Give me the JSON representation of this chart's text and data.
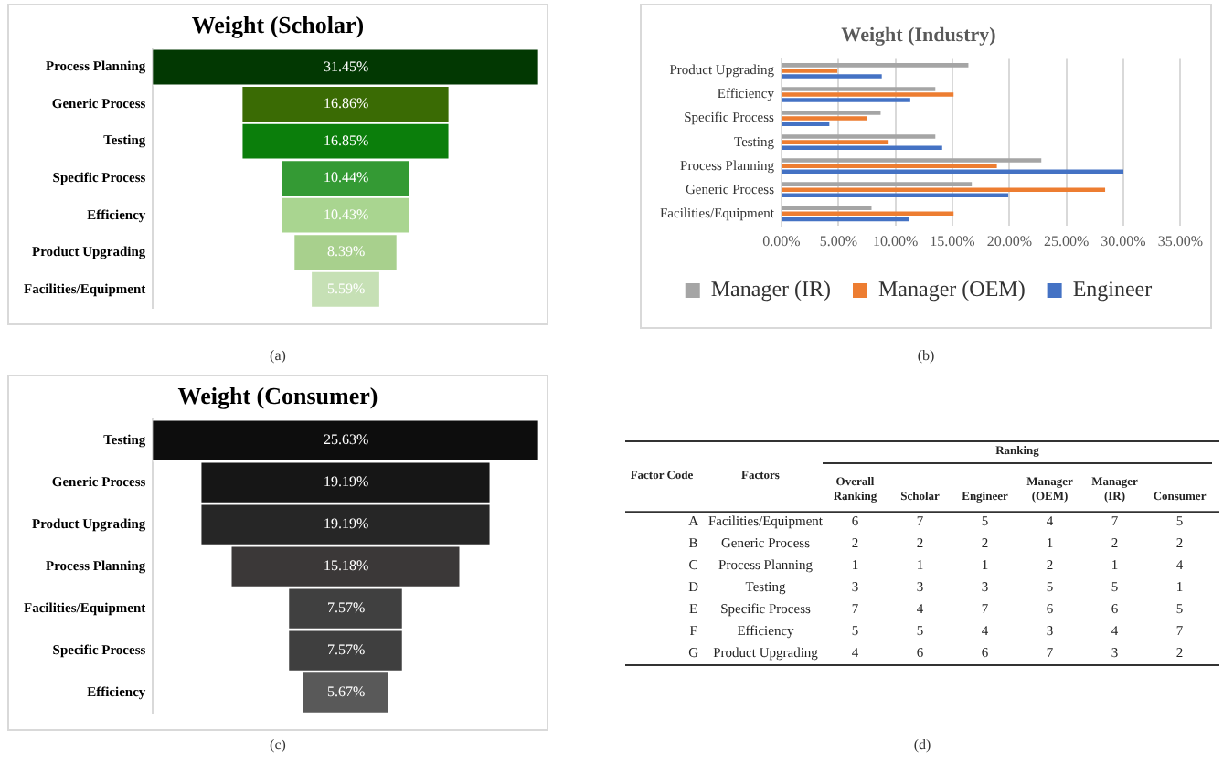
{
  "chart_data": [
    {
      "type": "other",
      "title": "Weight (Scholar)",
      "categories": [
        "Process Planning",
        "Generic Process",
        "Testing",
        "Specific Process",
        "Efficiency",
        "Product Upgrading",
        "Facilities/Equipment"
      ],
      "values": [
        31.45,
        16.86,
        16.85,
        10.44,
        10.43,
        8.39,
        5.59
      ],
      "value_labels": [
        "31.45%",
        "16.86%",
        "16.85%",
        "10.44%",
        "10.43%",
        "8.39%",
        "5.59%"
      ],
      "colors": [
        "#023802",
        "#3a6b04",
        "#0b7e0b",
        "#349a34",
        "#a9d590",
        "#a8d08d",
        "#c6e0b5"
      ],
      "annotations": [
        "(a)"
      ]
    },
    {
      "type": "bar",
      "orientation": "horizontal",
      "title": "Weight (Industry)",
      "categories": [
        "Product Upgrading",
        "Efficiency",
        "Specific Process",
        "Testing",
        "Process Planning",
        "Generic Process",
        "Facilities/Equipment"
      ],
      "series": [
        {
          "name": "Manager (IR)",
          "color": "#a5a5a5",
          "values": [
            16.4,
            13.5,
            8.7,
            13.5,
            22.8,
            16.7,
            7.9
          ]
        },
        {
          "name": "Manager (OEM)",
          "color": "#ed7d31",
          "values": [
            4.9,
            15.1,
            7.5,
            9.4,
            18.9,
            28.4,
            15.1
          ]
        },
        {
          "name": "Engineer",
          "color": "#4472c4",
          "values": [
            8.8,
            11.3,
            4.2,
            14.1,
            30.0,
            19.9,
            11.2
          ]
        }
      ],
      "xlim": [
        0,
        35
      ],
      "xticks": [
        {
          "value": 0,
          "label": "0.00%"
        },
        {
          "value": 5,
          "label": "5.00%"
        },
        {
          "value": 10,
          "label": "10.00%"
        },
        {
          "value": 15,
          "label": "15.00%"
        },
        {
          "value": 20,
          "label": "20.00%"
        },
        {
          "value": 25,
          "label": "25.00%"
        },
        {
          "value": 30,
          "label": "30.00%"
        },
        {
          "value": 35,
          "label": "35.00%"
        }
      ],
      "grid": "x",
      "legend": "bottom",
      "annotations": [
        "(b)"
      ]
    },
    {
      "type": "other",
      "title": "Weight (Consumer)",
      "categories": [
        "Testing",
        "Generic Process",
        "Product Upgrading",
        "Process Planning",
        "Facilities/Equipment",
        "Specific Process",
        "Efficiency"
      ],
      "values": [
        25.63,
        19.19,
        19.19,
        15.18,
        7.57,
        7.57,
        5.67
      ],
      "value_labels": [
        "25.63%",
        "19.19%",
        "19.19%",
        "15.18%",
        "7.57%",
        "7.57%",
        "5.67%"
      ],
      "colors": [
        "#0d0d0d",
        "#161616",
        "#262626",
        "#3b3838",
        "#404040",
        "#3f3f3f",
        "#595959"
      ],
      "annotations": [
        "(c)"
      ]
    },
    {
      "type": "heatmap",
      "ylabel": "Factors",
      "data_labels": true,
      "y2label": "Factor Code",
      "categories": [
        "Overall Ranking",
        "Scholar",
        "Engineer",
        "Manager (OEM)",
        "Manager (IR)",
        "Consumer"
      ],
      "y_categories": [
        "Facilities/Equipment",
        "Generic Process",
        "Process Planning",
        "Testing",
        "Specific Process",
        "Efficiency",
        "Product Upgrading"
      ],
      "y2_categories": [
        "A",
        "B",
        "C",
        "D",
        "E",
        "F",
        "G"
      ],
      "cells": [
        [
          6,
          7,
          5,
          4,
          7,
          5
        ],
        [
          2,
          2,
          2,
          1,
          2,
          2
        ],
        [
          1,
          1,
          1,
          2,
          1,
          4
        ],
        [
          3,
          3,
          3,
          5,
          5,
          1
        ],
        [
          7,
          4,
          7,
          6,
          6,
          5
        ],
        [
          5,
          5,
          4,
          3,
          4,
          7
        ],
        [
          4,
          6,
          6,
          7,
          3,
          2
        ]
      ],
      "annotations": [
        "Ranking",
        "(d)"
      ]
    }
  ]
}
